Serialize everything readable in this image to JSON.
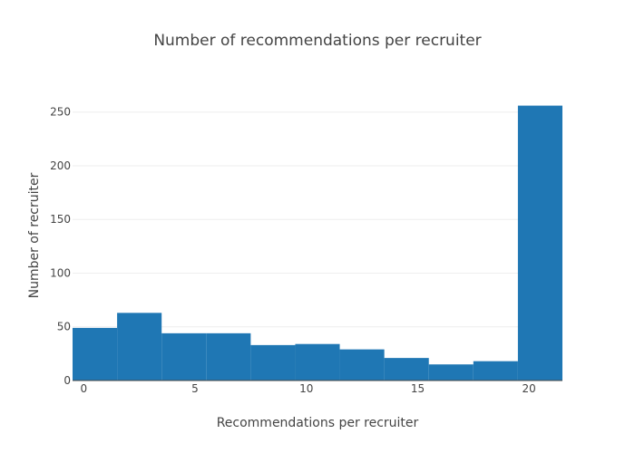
{
  "chart_data": {
    "type": "bar",
    "title": "Number of recommendations per recruiter",
    "xlabel": "Recommendations per recruiter",
    "ylabel": "Number of recruiter",
    "xlim": [
      -0.5,
      21.5
    ],
    "ylim": [
      0,
      270
    ],
    "xticks": [
      0,
      5,
      10,
      15,
      20
    ],
    "yticks": [
      0,
      50,
      100,
      150,
      200,
      250
    ],
    "grid": true,
    "bar_color": "#1f77b4",
    "bins": [
      {
        "x0": -0.5,
        "x1": 1.5,
        "value": 49
      },
      {
        "x0": 1.5,
        "x1": 3.5,
        "value": 63
      },
      {
        "x0": 3.5,
        "x1": 5.5,
        "value": 44
      },
      {
        "x0": 5.5,
        "x1": 7.5,
        "value": 44
      },
      {
        "x0": 7.5,
        "x1": 9.5,
        "value": 33
      },
      {
        "x0": 9.5,
        "x1": 11.5,
        "value": 34
      },
      {
        "x0": 11.5,
        "x1": 13.5,
        "value": 29
      },
      {
        "x0": 13.5,
        "x1": 15.5,
        "value": 21
      },
      {
        "x0": 15.5,
        "x1": 17.5,
        "value": 15
      },
      {
        "x0": 17.5,
        "x1": 19.5,
        "value": 18
      },
      {
        "x0": 19.5,
        "x1": 21.5,
        "value": 256
      }
    ]
  }
}
